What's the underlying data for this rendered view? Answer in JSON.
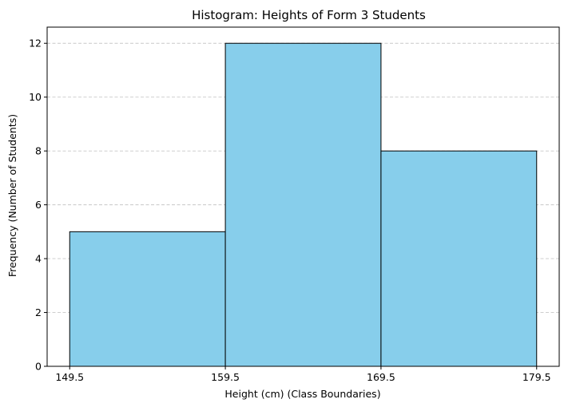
{
  "chart_data": {
    "type": "bar",
    "histogram": true,
    "title": "Histogram: Heights of Form 3 Students",
    "xlabel": "Height (cm) (Class Boundaries)",
    "ylabel": "Frequency (Number of Students)",
    "bins": [
      {
        "start": 149.5,
        "end": 159.5,
        "value": 5
      },
      {
        "start": 159.5,
        "end": 169.5,
        "value": 12
      },
      {
        "start": 169.5,
        "end": 179.5,
        "value": 8
      }
    ],
    "xticks": [
      149.5,
      159.5,
      169.5,
      179.5
    ],
    "xtick_labels": [
      "149.5",
      "159.5",
      "169.5",
      "179.5"
    ],
    "yticks": [
      0,
      2,
      4,
      6,
      8,
      10,
      12
    ],
    "xlim": [
      148.05,
      180.95
    ],
    "ylim": [
      0,
      12.6
    ],
    "grid": "y-dashed",
    "colors": {
      "bar": "#87ceeb",
      "edge": "#000000",
      "grid": "#c8c8c8"
    }
  }
}
